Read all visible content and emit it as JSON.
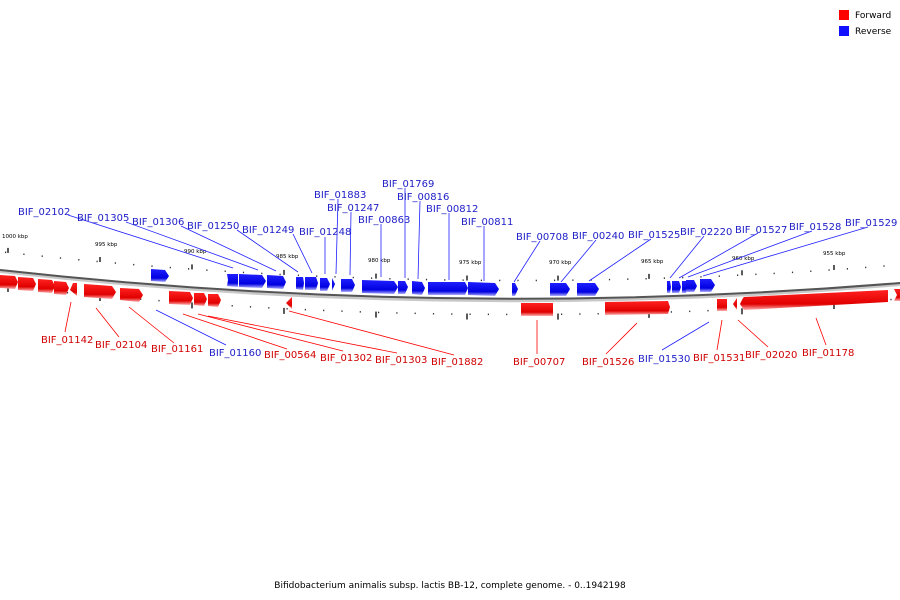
{
  "legend": {
    "forward_label": "Forward",
    "reverse_label": "Reverse",
    "forward_color": "#ff0000",
    "reverse_color": "#1010ff"
  },
  "caption": "Bifidobacterium animalis subsp. lactis BB-12, complete genome. - 0..1942198",
  "scale_labels": [
    "1000 kbp",
    "995 kbp",
    "990 kbp",
    "985 kbp",
    "980 kbp",
    "975 kbp",
    "970 kbp",
    "965 kbp",
    "960 kbp",
    "955 kbp"
  ],
  "reverse_genes": [
    "BIF_02102",
    "BIF_01305",
    "BIF_01306",
    "BIF_01250",
    "BIF_01249",
    "BIF_01248",
    "BIF_01883",
    "BIF_01247",
    "BIF_00863",
    "BIF_01769",
    "BIF_00816",
    "BIF_00812",
    "BIF_00811",
    "BIF_00708",
    "BIF_00240",
    "BIF_01525",
    "BIF_02220",
    "BIF_01527",
    "BIF_01528",
    "BIF_01529"
  ],
  "forward_genes": [
    "BIF_01142",
    "BIF_02104",
    "BIF_01161",
    "BIF_00564",
    "BIF_01302",
    "BIF_01303",
    "BIF_01882",
    "BIF_00707",
    "BIF_01526",
    "BIF_01531",
    "BIF_02020",
    "BIF_01178"
  ],
  "reverse_genes_below": [
    "BIF_01160",
    "BIF_01530"
  ]
}
